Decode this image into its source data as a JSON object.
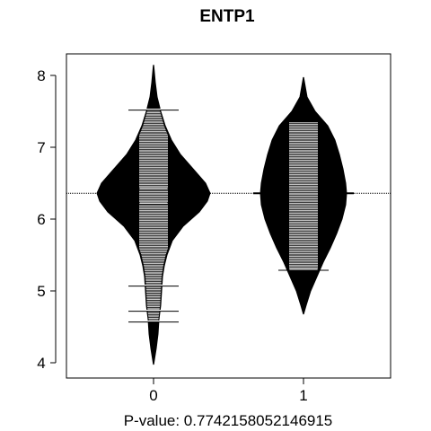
{
  "chart_data": {
    "type": "beanplot",
    "title": "ENTP1",
    "xlabel": "P-value: 0.7742158052146915",
    "ylabel": "",
    "ylim": [
      3.8,
      8.3
    ],
    "yticks": [
      4,
      5,
      6,
      7,
      8
    ],
    "xticks": [
      "0",
      "1"
    ],
    "grid": false,
    "legend": "none",
    "overall_line": 6.36,
    "colors": {
      "fill": "#000000",
      "lines": "#ffffff",
      "frame": "#000000"
    },
    "groups": [
      {
        "name": "0",
        "density_profile": [
          [
            3.98,
            0.2
          ],
          [
            4.2,
            3
          ],
          [
            4.4,
            5
          ],
          [
            4.6,
            6
          ],
          [
            4.8,
            8
          ],
          [
            5.0,
            9
          ],
          [
            5.2,
            10
          ],
          [
            5.35,
            12
          ],
          [
            5.5,
            15
          ],
          [
            5.7,
            21
          ],
          [
            5.9,
            33
          ],
          [
            6.1,
            51
          ],
          [
            6.25,
            60
          ],
          [
            6.36,
            63
          ],
          [
            6.5,
            58
          ],
          [
            6.7,
            44
          ],
          [
            6.9,
            30
          ],
          [
            7.1,
            20
          ],
          [
            7.3,
            13
          ],
          [
            7.5,
            8
          ],
          [
            7.7,
            4
          ],
          [
            7.9,
            2
          ],
          [
            8.14,
            0.2
          ]
        ],
        "obs_wide": [
          7.53,
          6.42,
          6.22,
          5.08,
          4.73,
          4.58
        ],
        "obs_min": 4.58,
        "obs_max": 7.53
      },
      {
        "name": "1",
        "density_profile": [
          [
            4.68,
            0.2
          ],
          [
            4.8,
            3
          ],
          [
            5.0,
            8
          ],
          [
            5.2,
            15
          ],
          [
            5.4,
            22
          ],
          [
            5.6,
            30
          ],
          [
            5.8,
            37
          ],
          [
            6.0,
            43
          ],
          [
            6.2,
            47
          ],
          [
            6.36,
            48
          ],
          [
            6.5,
            47
          ],
          [
            6.7,
            44
          ],
          [
            6.9,
            40
          ],
          [
            7.1,
            35
          ],
          [
            7.3,
            27
          ],
          [
            7.5,
            13
          ],
          [
            7.7,
            4
          ],
          [
            7.97,
            0.2
          ]
        ],
        "obs_wide": [
          5.3
        ],
        "obs_min": 5.3,
        "obs_max": 7.35
      }
    ]
  }
}
